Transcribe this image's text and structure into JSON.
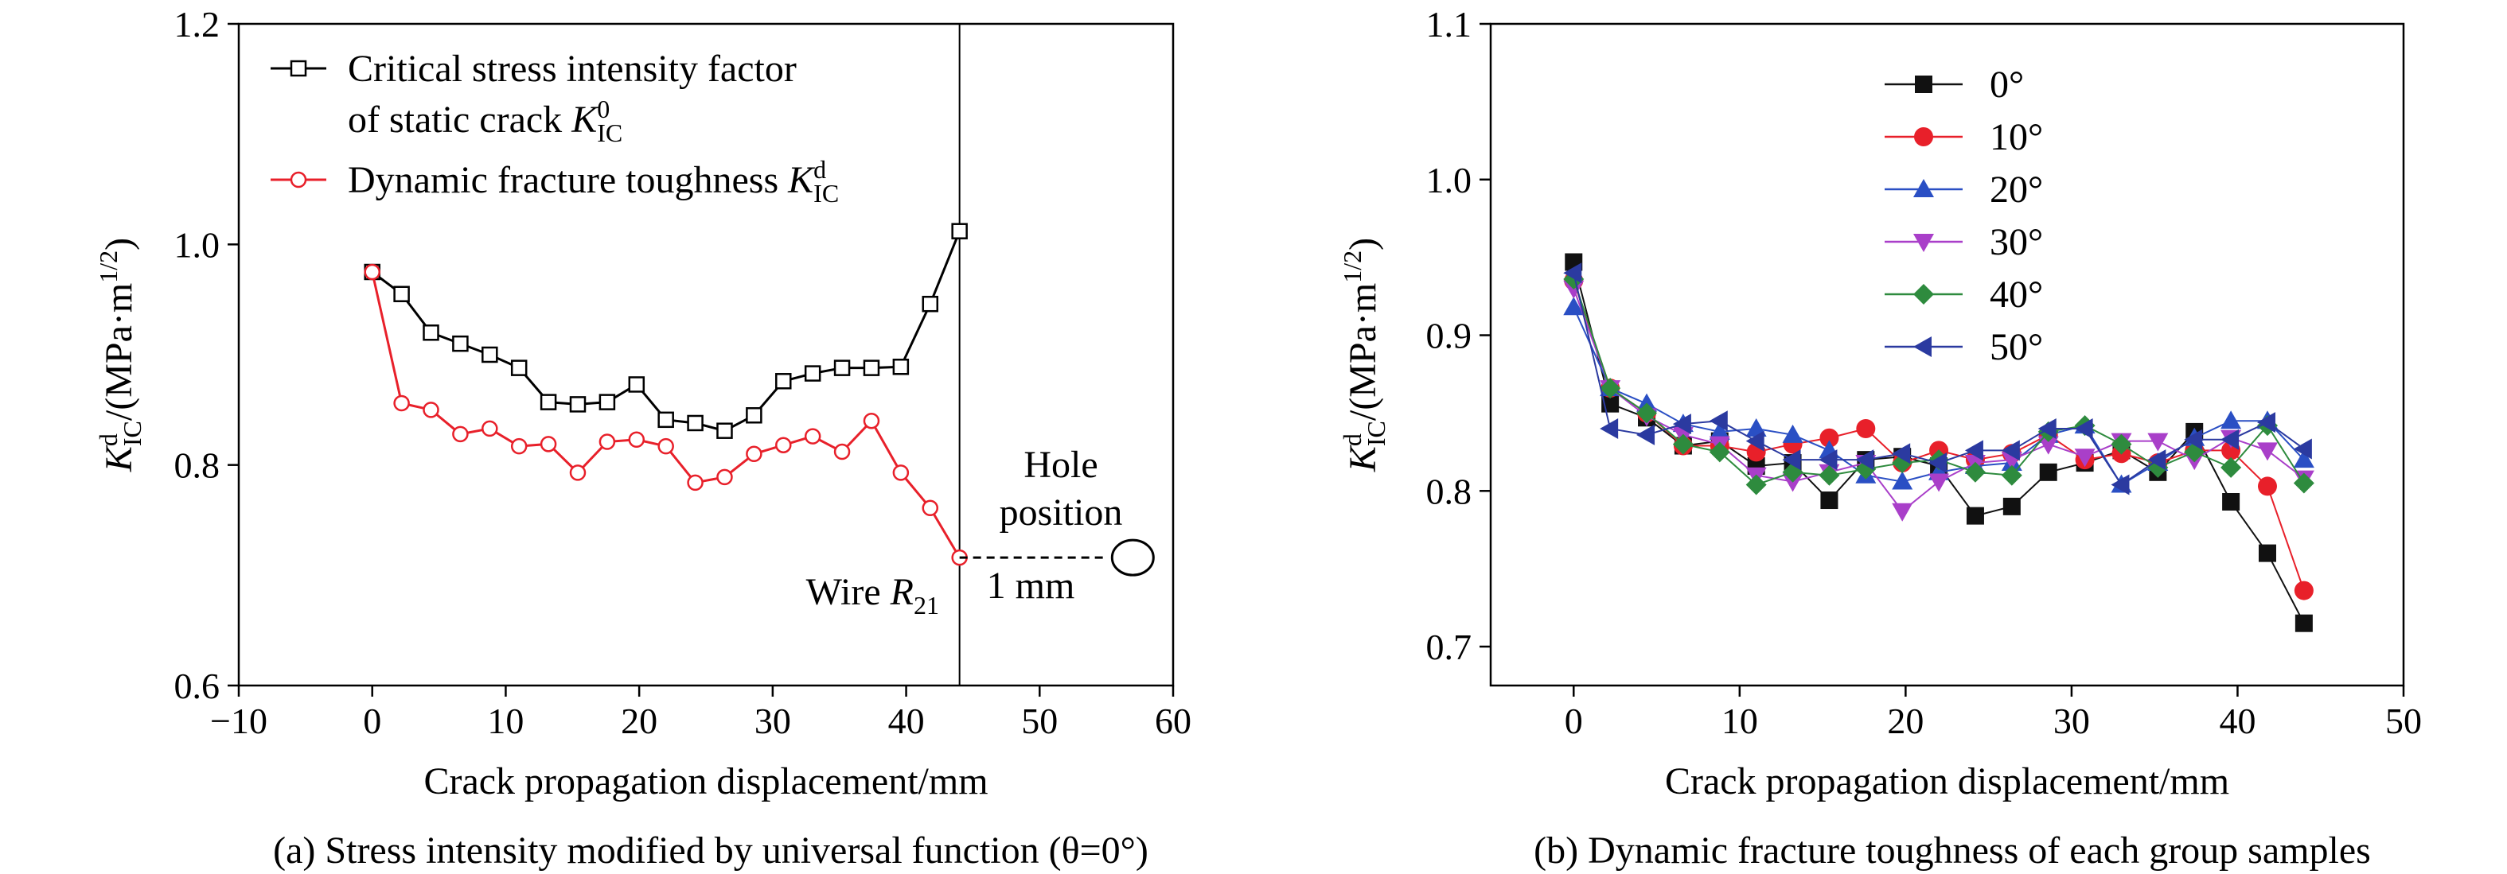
{
  "chart_data": [
    {
      "type": "line",
      "panel": "a",
      "caption": "(a) Stress intensity modified by universal function (θ=0°)",
      "xlabel": "Crack propagation displacement/mm",
      "ylabel": {
        "base": "K",
        "sup": "d",
        "sub": "IC",
        "unit": "/(MPa·m",
        "unit_sup": "1/2",
        "unit_close": ")"
      },
      "xlim": [
        -10,
        60
      ],
      "ylim": [
        0.6,
        1.2
      ],
      "xticks": [
        -10,
        0,
        10,
        20,
        30,
        40,
        50,
        60
      ],
      "yticks": [
        0.6,
        0.8,
        1.0,
        1.2
      ],
      "xtick_labels": [
        "−10",
        "0",
        "10",
        "20",
        "30",
        "40",
        "50",
        "60"
      ],
      "ytick_labels": [
        "0.6",
        "0.8",
        "1.0",
        "1.2"
      ],
      "grid": false,
      "legend_position": "top-left",
      "series": [
        {
          "name": "Critical stress intensity factor of static crack K⁰IC",
          "legend_line1": "Critical stress intensity factor",
          "legend_line2_prefix": "of static crack ",
          "legend_K": "K",
          "legend_sup": "0",
          "legend_sub": "IC",
          "color": "#000000",
          "marker": "square-open",
          "x": [
            0,
            2.2,
            4.4,
            6.6,
            8.8,
            11.0,
            13.2,
            15.4,
            17.6,
            19.8,
            22.0,
            24.2,
            26.4,
            28.6,
            30.8,
            33.0,
            35.2,
            37.4,
            39.6,
            41.8,
            44.0
          ],
          "y": [
            0.975,
            0.955,
            0.92,
            0.91,
            0.9,
            0.888,
            0.857,
            0.855,
            0.857,
            0.873,
            0.841,
            0.838,
            0.831,
            0.845,
            0.876,
            0.883,
            0.888,
            0.888,
            0.889,
            0.946,
            1.012
          ]
        },
        {
          "name": "Dynamic fracture toughness KdIC",
          "legend_line1": "Dynamic fracture toughness ",
          "legend_K": "K",
          "legend_sup": "d",
          "legend_sub": "IC",
          "color": "#e8202a",
          "marker": "circle-open",
          "x": [
            0,
            2.2,
            4.4,
            6.6,
            8.8,
            11.0,
            13.2,
            15.4,
            17.6,
            19.8,
            22.0,
            24.2,
            26.4,
            28.6,
            30.8,
            33.0,
            35.2,
            37.4,
            39.6,
            41.8,
            44.0
          ],
          "y": [
            0.975,
            0.856,
            0.85,
            0.828,
            0.833,
            0.817,
            0.819,
            0.793,
            0.821,
            0.823,
            0.817,
            0.784,
            0.789,
            0.81,
            0.818,
            0.826,
            0.812,
            0.84,
            0.793,
            0.761,
            0.716
          ]
        }
      ],
      "annotations": {
        "vertical_line_x": 44,
        "wire_label": "Wire ",
        "wire_R": "R",
        "wire_sub": "21",
        "hole_label_line1": "Hole",
        "hole_label_line2": "position",
        "distance_label": "1 mm",
        "dashed_from": [
          44,
          0.716
        ],
        "dashed_to": [
          56,
          0.716
        ],
        "hole_center": [
          56.5,
          0.716
        ]
      }
    },
    {
      "type": "line",
      "panel": "b",
      "caption": "(b) Dynamic fracture toughness of each group samples",
      "xlabel": "Crack propagation displacement/mm",
      "ylabel": {
        "base": "K",
        "sup": "d",
        "sub": "IC",
        "unit": "/(MPa·m",
        "unit_sup": "1/2",
        "unit_close": ")"
      },
      "xlim": [
        -5,
        50
      ],
      "ylim": [
        0.675,
        1.1
      ],
      "xticks": [
        0,
        10,
        20,
        30,
        40,
        50
      ],
      "yticks": [
        0.7,
        0.8,
        0.9,
        1.0,
        1.1
      ],
      "xtick_labels": [
        "0",
        "10",
        "20",
        "30",
        "40",
        "50"
      ],
      "ytick_labels": [
        "0.7",
        "0.8",
        "0.9",
        "1.0",
        "1.1"
      ],
      "grid": false,
      "legend_position": "top-center",
      "x": [
        0,
        2.2,
        4.4,
        6.6,
        8.8,
        11.0,
        13.2,
        15.4,
        17.6,
        19.8,
        22.0,
        24.2,
        26.4,
        28.6,
        30.8,
        33.0,
        35.2,
        37.4,
        39.6,
        41.8,
        44.0
      ],
      "series": [
        {
          "name": "0°",
          "color": "#111111",
          "marker": "square",
          "y": [
            0.947,
            0.856,
            0.847,
            0.829,
            0.832,
            0.816,
            0.818,
            0.794,
            0.82,
            0.822,
            0.816,
            0.784,
            0.79,
            0.812,
            0.818,
            0.826,
            0.812,
            0.838,
            0.793,
            0.76,
            0.715
          ]
        },
        {
          "name": "10°",
          "color": "#e8202a",
          "marker": "circle",
          "y": [
            0.935,
            0.866,
            0.85,
            0.829,
            0.829,
            0.825,
            0.83,
            0.834,
            0.84,
            0.818,
            0.826,
            0.82,
            0.824,
            0.836,
            0.82,
            0.824,
            0.818,
            0.826,
            0.826,
            0.803,
            0.736
          ]
        },
        {
          "name": "20°",
          "color": "#2a4fc4",
          "marker": "triangle-up",
          "y": [
            0.918,
            0.866,
            0.856,
            0.843,
            0.838,
            0.84,
            0.836,
            0.826,
            0.81,
            0.806,
            0.812,
            0.816,
            0.818,
            0.836,
            0.842,
            0.804,
            0.818,
            0.834,
            0.845,
            0.845,
            0.82
          ]
        },
        {
          "name": "30°",
          "color": "#a93fc9",
          "marker": "triangle-down",
          "y": [
            0.93,
            0.866,
            0.848,
            0.836,
            0.83,
            0.81,
            0.806,
            0.812,
            0.818,
            0.787,
            0.806,
            0.818,
            0.82,
            0.83,
            0.822,
            0.832,
            0.832,
            0.82,
            0.834,
            0.826,
            0.808
          ]
        },
        {
          "name": "40°",
          "color": "#2e8b3e",
          "marker": "diamond",
          "y": [
            0.936,
            0.866,
            0.85,
            0.83,
            0.825,
            0.804,
            0.812,
            0.81,
            0.814,
            0.818,
            0.82,
            0.812,
            0.81,
            0.838,
            0.842,
            0.83,
            0.815,
            0.825,
            0.815,
            0.842,
            0.805
          ]
        },
        {
          "name": "50°",
          "color": "#2b3aa0",
          "marker": "triangle-left",
          "y": [
            0.94,
            0.84,
            0.836,
            0.843,
            0.845,
            0.832,
            0.82,
            0.82,
            0.82,
            0.824,
            0.818,
            0.826,
            0.826,
            0.84,
            0.84,
            0.804,
            0.82,
            0.833,
            0.833,
            0.844,
            0.827
          ]
        }
      ]
    }
  ]
}
